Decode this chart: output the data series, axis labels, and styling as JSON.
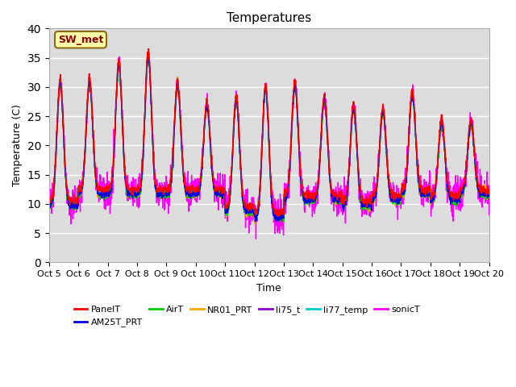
{
  "title": "Temperatures",
  "xlabel": "Time",
  "ylabel": "Temperature (C)",
  "ylim": [
    0,
    40
  ],
  "x_tick_labels": [
    "Oct 5",
    "Oct 6",
    "Oct 7",
    "Oct 8",
    "Oct 9",
    "Oct 10",
    "Oct 11",
    "Oct 12",
    "Oct 13",
    "Oct 14",
    "Oct 15",
    "Oct 16",
    "Oct 17",
    "Oct 18",
    "Oct 19",
    "Oct 20"
  ],
  "background_color": "#dcdcdc",
  "figure_background": "#ffffff",
  "annotation_text": "SW_met",
  "annotation_box_color": "#ffffaa",
  "annotation_text_color": "#8b0000",
  "annotation_edge_color": "#8b6914",
  "series": [
    {
      "name": "PanelT",
      "color": "#ff0000",
      "lw": 1.0
    },
    {
      "name": "AM25T_PRT",
      "color": "#0000dd",
      "lw": 1.0
    },
    {
      "name": "AirT",
      "color": "#00cc00",
      "lw": 1.0
    },
    {
      "name": "NR01_PRT",
      "color": "#ffa500",
      "lw": 1.0
    },
    {
      "name": "li75_t",
      "color": "#9900cc",
      "lw": 1.0
    },
    {
      "name": "li77_temp",
      "color": "#00cccc",
      "lw": 1.0
    },
    {
      "name": "sonicT",
      "color": "#ff00ff",
      "lw": 1.0
    }
  ],
  "grid_color": "#ffffff",
  "grid_lw": 1.0,
  "title_fontsize": 11,
  "axis_fontsize": 9,
  "tick_fontsize": 8
}
